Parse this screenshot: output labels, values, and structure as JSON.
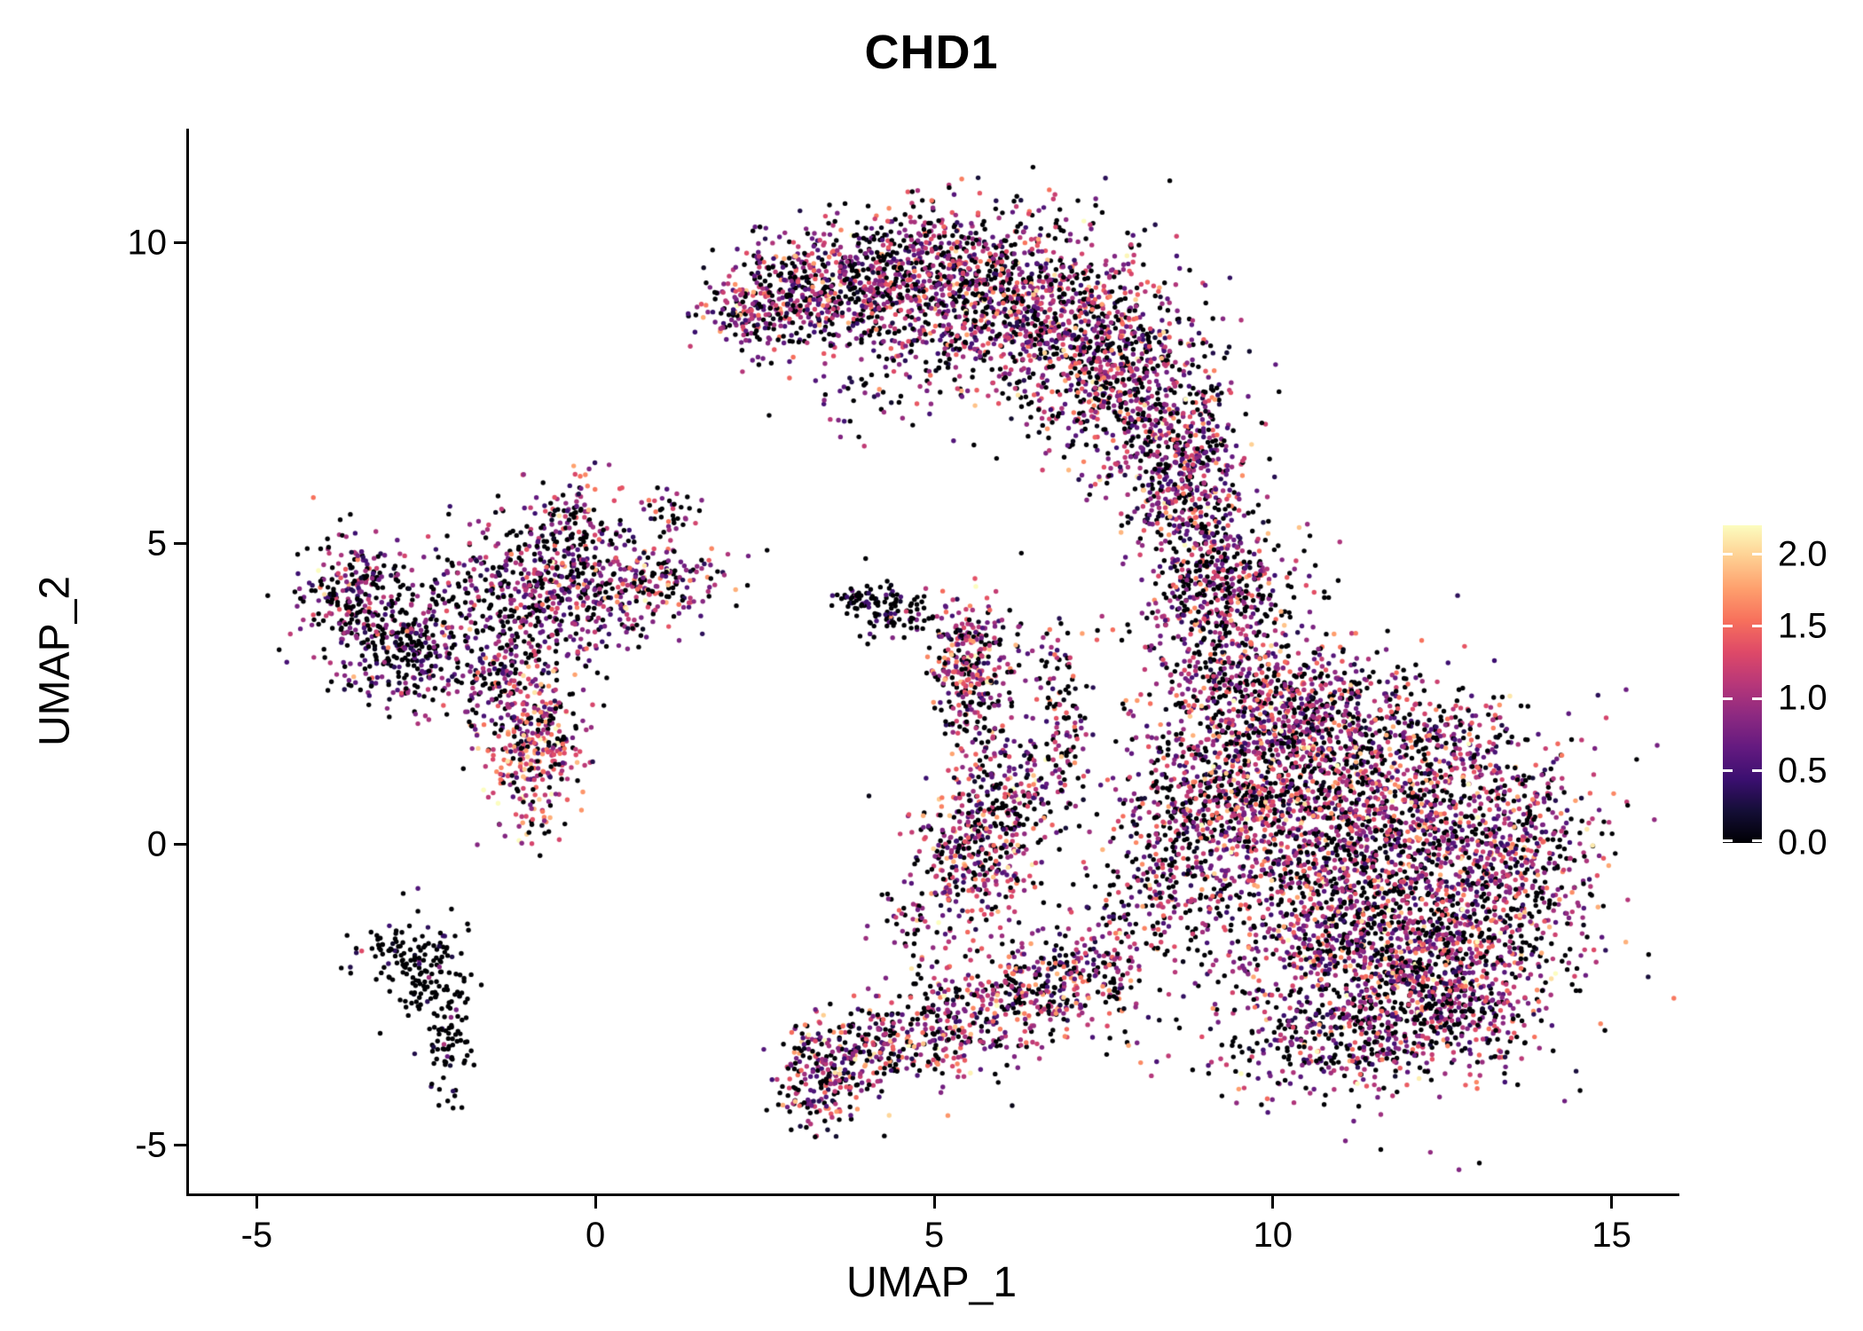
{
  "chart_data": {
    "type": "scatter",
    "title": "CHD1",
    "xlabel": "UMAP_1",
    "ylabel": "UMAP_2",
    "xlim": [
      -6.0,
      16.0
    ],
    "ylim": [
      -5.8,
      11.9
    ],
    "x_ticks": [
      -5,
      0,
      5,
      10,
      15
    ],
    "x_tick_labels": [
      "-5",
      "0",
      "5",
      "10",
      "15"
    ],
    "y_ticks": [
      -5,
      0,
      5,
      10
    ],
    "y_tick_labels": [
      "-5",
      "0",
      "5",
      "10"
    ],
    "grid": false,
    "background": "#ffffff",
    "axis_color": "#000000",
    "point_radius_px": 2.7,
    "legend_position": "right",
    "colorbar": {
      "min": 0.0,
      "max": 2.2,
      "ticks": [
        0.0,
        0.5,
        1.0,
        1.5,
        2.0
      ],
      "tick_labels": [
        "0.0",
        "0.5",
        "1.0",
        "1.5",
        "2.0"
      ],
      "palette_name": "magma",
      "stops": [
        "#000004",
        "#140e36",
        "#3b0f70",
        "#641a80",
        "#8c2981",
        "#b73779",
        "#de4968",
        "#f7705c",
        "#fe9f6d",
        "#fecf92",
        "#fcfdbf"
      ]
    },
    "seed": 42,
    "clusters": [
      {
        "cx": 2.4,
        "cy": 8.9,
        "sx": 0.45,
        "sy": 0.35,
        "n": 200,
        "p0": 0.32,
        "mu": 0.9
      },
      {
        "cx": 3.5,
        "cy": 9.3,
        "sx": 0.7,
        "sy": 0.5,
        "n": 420,
        "p0": 0.32,
        "mu": 0.9
      },
      {
        "cx": 5.0,
        "cy": 9.5,
        "sx": 0.85,
        "sy": 0.55,
        "n": 620,
        "p0": 0.32,
        "mu": 0.9
      },
      {
        "cx": 6.5,
        "cy": 8.9,
        "sx": 0.8,
        "sy": 0.75,
        "n": 720,
        "p0": 0.32,
        "mu": 0.95
      },
      {
        "cx": 7.8,
        "cy": 7.8,
        "sx": 0.65,
        "sy": 0.85,
        "n": 640,
        "p0": 0.32,
        "mu": 0.95
      },
      {
        "cx": 8.6,
        "cy": 6.4,
        "sx": 0.5,
        "sy": 0.8,
        "n": 440,
        "p0": 0.32,
        "mu": 0.9
      },
      {
        "cx": 5.2,
        "cy": 8.3,
        "sx": 1.2,
        "sy": 0.5,
        "n": 120,
        "p0": 0.45,
        "mu": 0.75
      },
      {
        "cx": 4.3,
        "cy": 7.6,
        "sx": 0.7,
        "sy": 0.5,
        "n": 60,
        "p0": 0.45,
        "mu": 0.75
      },
      {
        "cx": 9.1,
        "cy": 5.0,
        "sx": 0.45,
        "sy": 0.7,
        "n": 210,
        "p0": 0.35,
        "mu": 0.9
      },
      {
        "cx": 9.1,
        "cy": 3.9,
        "sx": 0.55,
        "sy": 0.6,
        "n": 250,
        "p0": 0.35,
        "mu": 0.9
      },
      {
        "cx": 9.6,
        "cy": 2.7,
        "sx": 0.7,
        "sy": 0.55,
        "n": 290,
        "p0": 0.35,
        "mu": 0.9
      },
      {
        "cx": 10.8,
        "cy": 2.2,
        "sx": 0.7,
        "sy": 0.5,
        "n": 250,
        "p0": 0.35,
        "mu": 0.95
      },
      {
        "cx": 11.2,
        "cy": 0.2,
        "sx": 1.4,
        "sy": 1.0,
        "n": 1500,
        "p0": 0.33,
        "mu": 1.0
      },
      {
        "cx": 11.6,
        "cy": -1.9,
        "sx": 1.2,
        "sy": 0.8,
        "n": 1000,
        "p0": 0.33,
        "mu": 1.0
      },
      {
        "cx": 12.6,
        "cy": -2.8,
        "sx": 0.7,
        "sy": 0.5,
        "n": 280,
        "p0": 0.4,
        "mu": 0.9
      },
      {
        "cx": 13.3,
        "cy": -0.6,
        "sx": 0.7,
        "sy": 0.9,
        "n": 400,
        "p0": 0.35,
        "mu": 0.95
      },
      {
        "cx": 14.0,
        "cy": 0.3,
        "sx": 0.4,
        "sy": 0.5,
        "n": 90,
        "p0": 0.38,
        "mu": 0.9
      },
      {
        "cx": 9.8,
        "cy": 1.4,
        "sx": 0.75,
        "sy": 0.8,
        "n": 500,
        "p0": 0.33,
        "mu": 1.0
      },
      {
        "cx": 10.9,
        "cy": -3.2,
        "sx": 1.0,
        "sy": 0.5,
        "n": 280,
        "p0": 0.4,
        "mu": 0.9
      },
      {
        "cx": 8.8,
        "cy": 0.3,
        "sx": 0.55,
        "sy": 0.8,
        "n": 300,
        "p0": 0.33,
        "mu": 1.0
      },
      {
        "cx": 11.3,
        "cy": -0.5,
        "sx": 2.1,
        "sy": 1.8,
        "n": 320,
        "p0": 0.42,
        "mu": 0.85
      },
      {
        "cx": 12.3,
        "cy": 1.6,
        "sx": 0.8,
        "sy": 0.6,
        "n": 240,
        "p0": 0.35,
        "mu": 0.95
      },
      {
        "cx": 9.3,
        "cy": 4.5,
        "sx": 0.6,
        "sy": 0.5,
        "n": 120,
        "p0": 0.4,
        "mu": 0.85
      },
      {
        "cx": 8.2,
        "cy": -0.9,
        "sx": 0.5,
        "sy": 0.6,
        "n": 120,
        "p0": 0.4,
        "mu": 0.9
      },
      {
        "cx": -3.6,
        "cy": 4.2,
        "sx": 0.4,
        "sy": 0.45,
        "n": 230,
        "p0": 0.4,
        "mu": 0.8
      },
      {
        "cx": -2.9,
        "cy": 3.3,
        "sx": 0.5,
        "sy": 0.45,
        "n": 270,
        "p0": 0.55,
        "mu": 0.65
      },
      {
        "cx": -0.6,
        "cy": 4.3,
        "sx": 0.9,
        "sy": 0.6,
        "n": 560,
        "p0": 0.4,
        "mu": 0.85
      },
      {
        "cx": -0.4,
        "cy": 5.4,
        "sx": 0.35,
        "sy": 0.45,
        "n": 100,
        "p0": 0.35,
        "mu": 0.9
      },
      {
        "cx": 1.0,
        "cy": 4.4,
        "sx": 0.5,
        "sy": 0.3,
        "n": 130,
        "p0": 0.3,
        "mu": 1.0
      },
      {
        "cx": -0.9,
        "cy": 1.5,
        "sx": 0.35,
        "sy": 0.65,
        "n": 310,
        "p0": 0.18,
        "mu": 1.15
      },
      {
        "cx": -1.4,
        "cy": 2.7,
        "sx": 0.5,
        "sy": 0.5,
        "n": 170,
        "p0": 0.35,
        "mu": 0.9
      },
      {
        "cx": -1.6,
        "cy": 3.6,
        "sx": 1.1,
        "sy": 0.8,
        "n": 150,
        "p0": 0.5,
        "mu": 0.7
      },
      {
        "cx": -2.5,
        "cy": -2.0,
        "sx": 0.3,
        "sy": 0.45,
        "n": 110,
        "p0": 0.85,
        "mu": 0.4
      },
      {
        "cx": -2.15,
        "cy": -3.3,
        "sx": 0.18,
        "sy": 0.5,
        "n": 80,
        "p0": 0.85,
        "mu": 0.4
      },
      {
        "cx": -3.0,
        "cy": -1.8,
        "sx": 0.3,
        "sy": 0.2,
        "n": 50,
        "p0": 0.8,
        "mu": 0.4
      },
      {
        "cx": 4.4,
        "cy": 3.9,
        "sx": 0.3,
        "sy": 0.22,
        "n": 90,
        "p0": 0.72,
        "mu": 0.5
      },
      {
        "cx": 3.85,
        "cy": 4.05,
        "sx": 0.18,
        "sy": 0.12,
        "n": 35,
        "p0": 0.7,
        "mu": 0.5
      },
      {
        "cx": 5.5,
        "cy": 3.1,
        "sx": 0.3,
        "sy": 0.5,
        "n": 250,
        "p0": 0.25,
        "mu": 1.05
      },
      {
        "cx": 5.6,
        "cy": 2.2,
        "sx": 0.3,
        "sy": 0.35,
        "n": 70,
        "p0": 0.35,
        "mu": 0.9
      },
      {
        "cx": 6.7,
        "cy": 3.2,
        "sx": 0.5,
        "sy": 0.6,
        "n": 45,
        "p0": 0.45,
        "mu": 0.8
      },
      {
        "cx": 5.6,
        "cy": -0.1,
        "sx": 0.5,
        "sy": 0.65,
        "n": 400,
        "p0": 0.3,
        "mu": 1.0
      },
      {
        "cx": 6.2,
        "cy": 1.1,
        "sx": 0.4,
        "sy": 0.5,
        "n": 140,
        "p0": 0.35,
        "mu": 0.9
      },
      {
        "cx": 6.9,
        "cy": 1.9,
        "sx": 0.25,
        "sy": 0.8,
        "n": 90,
        "p0": 0.4,
        "mu": 0.85
      },
      {
        "cx": 3.3,
        "cy": -3.9,
        "sx": 0.35,
        "sy": 0.45,
        "n": 210,
        "p0": 0.28,
        "mu": 1.0
      },
      {
        "cx": 4.2,
        "cy": -3.4,
        "sx": 0.5,
        "sy": 0.4,
        "n": 180,
        "p0": 0.3,
        "mu": 1.0
      },
      {
        "cx": 5.2,
        "cy": -2.9,
        "sx": 0.6,
        "sy": 0.45,
        "n": 230,
        "p0": 0.3,
        "mu": 1.0
      },
      {
        "cx": 6.3,
        "cy": -2.5,
        "sx": 0.5,
        "sy": 0.4,
        "n": 200,
        "p0": 0.32,
        "mu": 1.0
      },
      {
        "cx": 7.2,
        "cy": -2.2,
        "sx": 0.45,
        "sy": 0.45,
        "n": 180,
        "p0": 0.33,
        "mu": 1.0
      },
      {
        "cx": 4.75,
        "cy": -1.4,
        "sx": 0.3,
        "sy": 0.3,
        "n": 35,
        "p0": 0.4,
        "mu": 0.8
      },
      {
        "cx": 1.1,
        "cy": 5.5,
        "sx": 0.3,
        "sy": 0.25,
        "n": 35,
        "p0": 0.4,
        "mu": 0.85
      }
    ]
  }
}
